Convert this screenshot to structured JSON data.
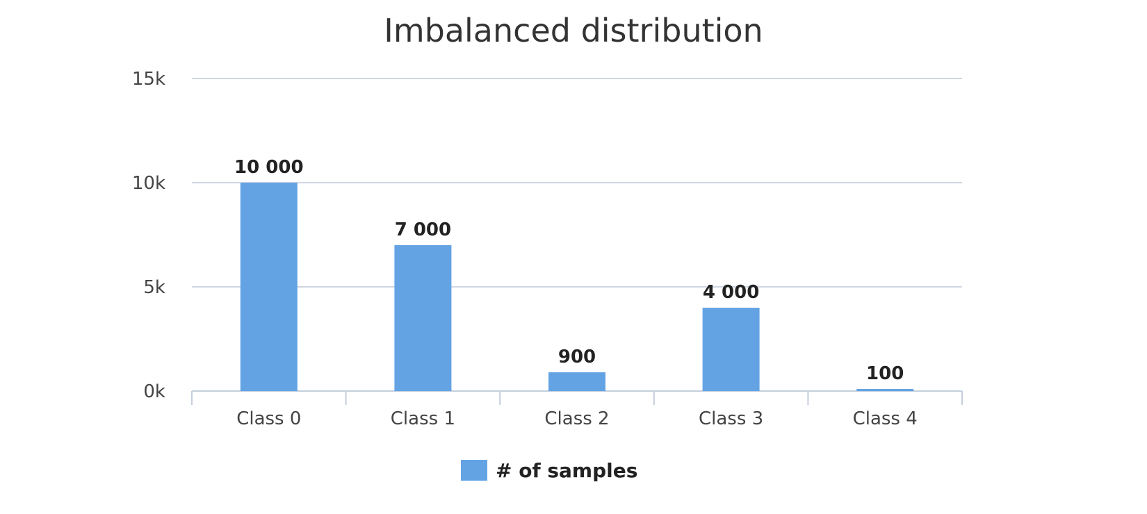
{
  "chart_data": {
    "type": "bar",
    "title": "Imbalanced distribution",
    "xlabel": "",
    "ylabel": "",
    "categories": [
      "Class 0",
      "Class 1",
      "Class 2",
      "Class 3",
      "Class 4"
    ],
    "series": [
      {
        "name": "# of samples",
        "values": [
          10000,
          7000,
          900,
          4000,
          100
        ],
        "labels": [
          "10 000",
          "7 000",
          "900",
          "4 000",
          "100"
        ],
        "color": "#63a3e4"
      }
    ],
    "ylim": [
      0,
      15000
    ],
    "yticks": [
      0,
      5000,
      10000,
      15000
    ],
    "ytick_labels": [
      "0k",
      "5k",
      "10k",
      "15k"
    ],
    "grid": true,
    "legend_position": "bottom-center"
  }
}
